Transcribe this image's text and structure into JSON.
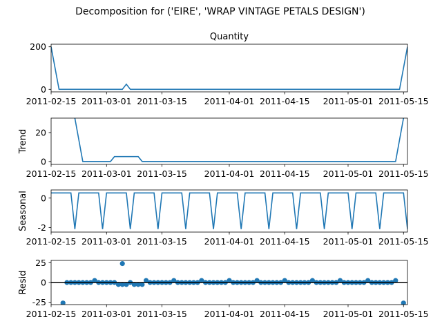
{
  "figure": {
    "suptitle": "Decomposition for ('EIRE', 'WRAP VINTAGE PETALS  DESIGN')",
    "panel_title": "Quantity"
  },
  "colors": {
    "line": "#1f77b4",
    "marker": "#1f77b4",
    "zero_line": "#000000"
  },
  "chart_data": [
    {
      "type": "line",
      "name_key": "observed",
      "title": "Quantity",
      "ylabel": "",
      "xlim": [
        "2011-02-15",
        "2011-05-16"
      ],
      "ylim": [
        -12,
        212
      ],
      "yticks": [
        0,
        200
      ],
      "xticks": [
        "2011-02-15",
        "2011-03-01",
        "2011-03-15",
        "2011-04-01",
        "2011-04-15",
        "2011-05-01",
        "2011-05-15"
      ],
      "points": [
        [
          "2011-02-15",
          200
        ],
        [
          "2011-02-17",
          0
        ],
        [
          "2011-03-05",
          0
        ],
        [
          "2011-03-06",
          24
        ],
        [
          "2011-03-07",
          0
        ],
        [
          "2011-05-14",
          0
        ],
        [
          "2011-05-16",
          200
        ]
      ]
    },
    {
      "type": "line",
      "name_key": "trend",
      "title": "",
      "ylabel": "Trend",
      "xlim": [
        "2011-02-15",
        "2011-05-16"
      ],
      "ylim": [
        -2,
        30
      ],
      "yticks": [
        0,
        20
      ],
      "xticks": [
        "2011-02-15",
        "2011-03-01",
        "2011-03-15",
        "2011-04-01",
        "2011-04-15",
        "2011-05-01",
        "2011-05-15"
      ],
      "points": [
        [
          "2011-02-21",
          30
        ],
        [
          "2011-02-23",
          0
        ],
        [
          "2011-02-28",
          0
        ],
        [
          "2011-03-02",
          0
        ],
        [
          "2011-03-03",
          3.4
        ],
        [
          "2011-03-09",
          3.4
        ],
        [
          "2011-03-10",
          0
        ],
        [
          "2011-05-13",
          0
        ],
        [
          "2011-05-15",
          30
        ]
      ]
    },
    {
      "type": "line",
      "name_key": "seasonal",
      "title": "",
      "ylabel": "Seasonal",
      "xlim": [
        "2011-02-15",
        "2011-05-16"
      ],
      "ylim": [
        -2.3,
        0.55
      ],
      "yticks": [
        -2,
        0
      ],
      "xticks": [
        "2011-02-15",
        "2011-03-01",
        "2011-03-15",
        "2011-04-01",
        "2011-04-15",
        "2011-05-01",
        "2011-05-15"
      ],
      "period_days": 7,
      "low_day_offset": 6,
      "high_value": 0.35,
      "low_value": -2.1,
      "first_day": "2011-02-15",
      "last_day": "2011-05-16"
    },
    {
      "type": "scatter",
      "name_key": "resid",
      "title": "",
      "ylabel": "Resid",
      "xlim": [
        "2011-02-15",
        "2011-05-16"
      ],
      "ylim": [
        -28,
        28
      ],
      "yticks": [
        -25,
        0,
        25
      ],
      "xticks": [
        "2011-02-15",
        "2011-03-01",
        "2011-03-15",
        "2011-04-01",
        "2011-04-15",
        "2011-05-01",
        "2011-05-15"
      ],
      "zero_line": true,
      "first_day": "2011-02-18",
      "last_day": "2011-05-13",
      "baseline": 0,
      "special": [
        [
          "2011-02-18",
          -26
        ],
        [
          "2011-03-05",
          24
        ],
        [
          "2011-05-15",
          -26
        ],
        [
          "2011-02-26",
          2.5
        ],
        [
          "2011-03-04",
          -2.5
        ],
        [
          "2011-03-05",
          -2.5
        ],
        [
          "2011-03-06",
          -2.5
        ],
        [
          "2011-03-08",
          -2.5
        ],
        [
          "2011-03-09",
          -2.5
        ],
        [
          "2011-03-10",
          -2.5
        ]
      ],
      "weekly_bump_start": "2011-03-11",
      "weekly_bump_value": 2.5
    }
  ]
}
